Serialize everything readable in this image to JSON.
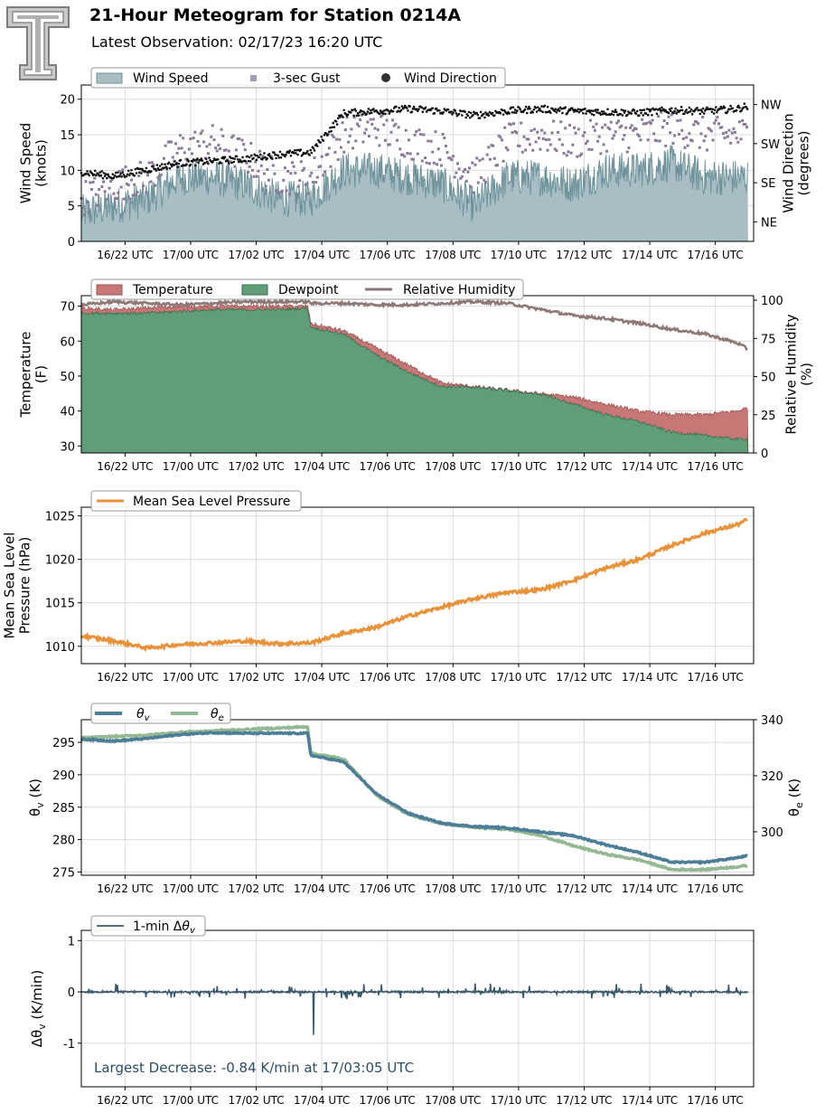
{
  "header": {
    "title": "21-Hour Meteogram for Station 0214A",
    "subtitle": "Latest Observation: 02/17/23 16:20 UTC"
  },
  "x_tick_labels": [
    "16/22 UTC",
    "17/00 UTC",
    "17/02 UTC",
    "17/04 UTC",
    "17/06 UTC",
    "17/08 UTC",
    "17/10 UTC",
    "17/12 UTC",
    "17/14 UTC",
    "17/16 UTC"
  ],
  "colors": {
    "wind_fill": "#a8bec4",
    "wind_line": "#6f939a",
    "gust": "#8a7a98",
    "direction": "#111111",
    "temperature": "#c87777",
    "dewpoint": "#5f9e78",
    "rh": "#8e7777",
    "mslp": "#e8923a",
    "theta_v": "#4d7e98",
    "theta_e": "#94b892",
    "dtheta": "#3a5a6c",
    "annotation": "#2a4e63"
  },
  "chart_data": [
    {
      "id": "wind",
      "type": "area",
      "ylabel": [
        "Wind Speed",
        "(knots)"
      ],
      "ylabel_right": [
        "Wind Direction",
        "(degrees)"
      ],
      "ylim": [
        0,
        22
      ],
      "yticks": [
        0,
        5,
        10,
        15,
        20
      ],
      "right_ticks": [
        "NE",
        "SE",
        "SW",
        "NW"
      ],
      "right_tick_values": [
        45,
        135,
        225,
        315
      ],
      "right_ylim": [
        0,
        360
      ],
      "legend": [
        "Wind Speed",
        "3-sec Gust",
        "Wind Direction"
      ],
      "x_hours": [
        0,
        1,
        2,
        3,
        4,
        5,
        6,
        7,
        8,
        9,
        10,
        11,
        12,
        13,
        14,
        15,
        16,
        17,
        18,
        19,
        20,
        20.33
      ],
      "series": [
        {
          "name": "Wind Speed",
          "values": [
            4,
            5,
            6,
            9,
            9,
            8,
            6,
            6,
            10,
            10,
            9,
            8,
            5,
            9,
            9,
            8,
            10,
            10,
            11,
            9,
            9,
            9
          ]
        },
        {
          "name": "3-sec Gust",
          "values": [
            6,
            8,
            9,
            13,
            14,
            12,
            9,
            9,
            15,
            16,
            14,
            13,
            9,
            14,
            15,
            14,
            15,
            15,
            16,
            15,
            15,
            15
          ]
        },
        {
          "name": "Wind Direction",
          "values": [
            160,
            150,
            165,
            180,
            185,
            190,
            200,
            205,
            295,
            300,
            305,
            300,
            290,
            300,
            305,
            300,
            298,
            296,
            302,
            300,
            305,
            312
          ]
        }
      ]
    },
    {
      "id": "thermo",
      "type": "area",
      "ylabel": [
        "Temperature",
        "(F)"
      ],
      "ylabel_right": [
        "Relative Humidity",
        "(%)"
      ],
      "ylim": [
        28,
        73
      ],
      "yticks": [
        30,
        40,
        50,
        60,
        70
      ],
      "right_ylim": [
        0,
        103
      ],
      "right_ticks": [
        "0",
        "25",
        "50",
        "75",
        "100"
      ],
      "right_tick_values": [
        0,
        25,
        50,
        75,
        100
      ],
      "legend": [
        "Temperature",
        "Dewpoint",
        "Relative Humidity"
      ],
      "x_hours": [
        0,
        1,
        2,
        3,
        4,
        5,
        6,
        6.9,
        7,
        8,
        9,
        10,
        11,
        12,
        13,
        14,
        15,
        16,
        17,
        18,
        19,
        20,
        20.33
      ],
      "series": [
        {
          "name": "Temperature",
          "values": [
            69.5,
            69,
            69.5,
            70,
            70,
            70,
            70,
            70,
            65,
            63,
            58,
            53,
            48,
            47,
            46,
            45,
            44,
            42,
            40,
            39,
            39,
            40,
            41
          ]
        },
        {
          "name": "Dewpoint",
          "values": [
            68,
            68,
            68,
            68.5,
            69,
            69,
            69,
            69.5,
            64,
            62,
            56,
            51,
            47,
            47,
            47,
            45,
            42,
            39,
            37,
            34,
            33,
            32,
            32
          ]
        },
        {
          "name": "Relative Humidity",
          "values": [
            97,
            99,
            98,
            97,
            98,
            99,
            99,
            99,
            98,
            98,
            97,
            97,
            98,
            99,
            98,
            94,
            90,
            88,
            85,
            81,
            78,
            72,
            68
          ]
        }
      ]
    },
    {
      "id": "mslp",
      "type": "line",
      "ylabel": [
        "Mean Sea Level",
        "Pressure (hPa)"
      ],
      "ylim": [
        1008,
        1026
      ],
      "yticks": [
        1010,
        1015,
        1020,
        1025
      ],
      "legend": [
        "Mean Sea Level Pressure"
      ],
      "x_hours": [
        0,
        1,
        2,
        3,
        4,
        5,
        6,
        7,
        8,
        9,
        10,
        11,
        12,
        13,
        14,
        15,
        16,
        17,
        18,
        19,
        20,
        20.33
      ],
      "series": [
        {
          "name": "Mean Sea Level Pressure",
          "values": [
            1011.2,
            1010.6,
            1009.8,
            1010.2,
            1010.4,
            1010.6,
            1010.3,
            1010.4,
            1011.5,
            1012.2,
            1013.5,
            1014.5,
            1015.5,
            1016.2,
            1016.5,
            1017.6,
            1019.0,
            1020.0,
            1021.6,
            1023.0,
            1024.0,
            1024.6
          ]
        }
      ]
    },
    {
      "id": "theta",
      "type": "line",
      "ylabel": [
        "θ_v (K)"
      ],
      "ylabel_right": [
        "θ_e (K)"
      ],
      "ylim": [
        274.5,
        298.5
      ],
      "yticks": [
        275,
        280,
        285,
        290,
        295
      ],
      "right_ylim": [
        284.5,
        340
      ],
      "right_ticks": [
        "300",
        "320",
        "340"
      ],
      "right_tick_values": [
        300,
        320,
        340
      ],
      "legend": [
        "θv",
        "θe"
      ],
      "x_hours": [
        0,
        1,
        2,
        3,
        4,
        5,
        6,
        6.9,
        7,
        8,
        9,
        10,
        11,
        12,
        13,
        14,
        15,
        16,
        17,
        18,
        19,
        20,
        20.33
      ],
      "series": [
        {
          "name": "θv",
          "values": [
            295.5,
            295.2,
            295.6,
            296.2,
            296.5,
            296.4,
            296.4,
            296.4,
            293,
            292,
            287,
            284,
            282.5,
            282,
            281.8,
            281.2,
            280.6,
            279.2,
            278,
            276.5,
            276.5,
            277.2,
            277.5
          ]
        },
        {
          "name": "θe",
          "values": [
            333.5,
            334,
            334.5,
            335.5,
            336,
            336.5,
            337,
            337.5,
            328,
            326,
            313,
            306,
            303,
            301.5,
            301,
            298.7,
            295,
            292,
            290,
            286.5,
            286.5,
            287.5,
            288
          ]
        }
      ]
    },
    {
      "id": "dtheta",
      "type": "line",
      "ylabel": [
        "Δθ_v (K/min)"
      ],
      "ylim": [
        -1.85,
        1.2
      ],
      "yticks": [
        -1,
        0,
        1
      ],
      "legend": [
        "1-min Δθv"
      ],
      "annotation": "Largest Decrease: -0.84 K/min at 17/03:05 UTC",
      "min_value": -0.84,
      "min_hour": 7.08,
      "series": [
        {
          "name": "1-min Δθv",
          "values": [
            0
          ]
        }
      ]
    }
  ]
}
